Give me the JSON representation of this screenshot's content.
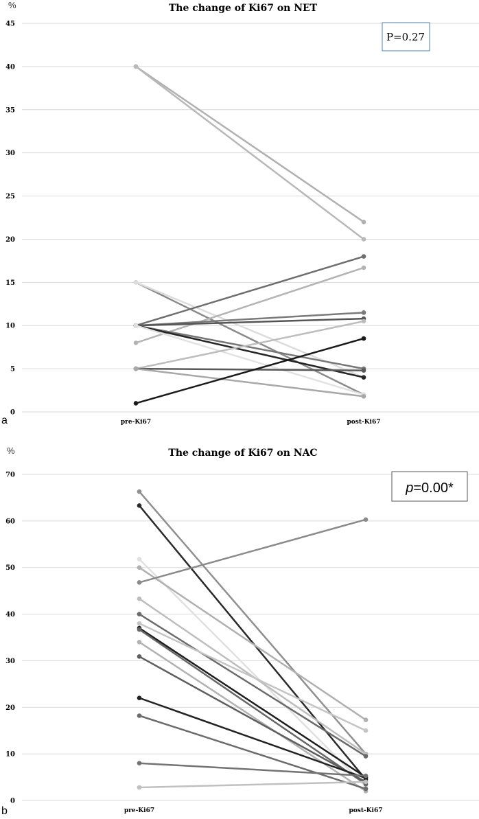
{
  "chart_data": [
    {
      "type": "line",
      "panel_label": "a",
      "title": "The change of Ki67 on NET",
      "unit_label": "%",
      "categories": [
        "pre-Ki67",
        "post-Ki67"
      ],
      "yticks": [
        "0",
        "5",
        "10",
        "15",
        "20",
        "25",
        "30",
        "35",
        "40",
        "45"
      ],
      "ylim": [
        0,
        45
      ],
      "grid": true,
      "annotation": "P=0.27",
      "series": [
        {
          "values": [
            40,
            22
          ],
          "color": "#b0b0b0"
        },
        {
          "values": [
            40,
            20
          ],
          "color": "#b8b8b8"
        },
        {
          "values": [
            15,
            2
          ],
          "color": "#8a8a8a"
        },
        {
          "values": [
            15,
            4
          ],
          "color": "#dcdcdc"
        },
        {
          "values": [
            10,
            18
          ],
          "color": "#6e6e6e"
        },
        {
          "values": [
            8,
            16.7
          ],
          "color": "#b4b4b4"
        },
        {
          "values": [
            10,
            11.5
          ],
          "color": "#7a7a7a"
        },
        {
          "values": [
            10,
            10.8
          ],
          "color": "#555555"
        },
        {
          "values": [
            10,
            5
          ],
          "color": "#777777"
        },
        {
          "values": [
            10,
            4
          ],
          "color": "#262626"
        },
        {
          "values": [
            10,
            2
          ],
          "color": "#e2e2e2"
        },
        {
          "values": [
            5,
            10.5
          ],
          "color": "#bdbdbd"
        },
        {
          "values": [
            5,
            4.8
          ],
          "color": "#595959"
        },
        {
          "values": [
            5,
            1.8
          ],
          "color": "#a8a8a8"
        },
        {
          "values": [
            1,
            8.5
          ],
          "color": "#1a1a1a"
        }
      ]
    },
    {
      "type": "line",
      "panel_label": "b",
      "title": "The change of Ki67 on NAC",
      "unit_label": "%",
      "categories": [
        "pre-Ki67",
        "post-Ki67"
      ],
      "yticks": [
        "0",
        "10",
        "20",
        "30",
        "40",
        "50",
        "60",
        "70"
      ],
      "ylim": [
        0,
        70
      ],
      "grid": true,
      "annotation": "p=0.00*",
      "series": [
        {
          "values": [
            66.3,
            10
          ],
          "color": "#8f8f8f"
        },
        {
          "values": [
            63.3,
            4.5
          ],
          "color": "#2a2a2a"
        },
        {
          "values": [
            51.8,
            3
          ],
          "color": "#e0e0e0"
        },
        {
          "values": [
            50,
            17.3
          ],
          "color": "#b0b0b0"
        },
        {
          "values": [
            46.8,
            60.3
          ],
          "color": "#8a8a8a"
        },
        {
          "values": [
            43.3,
            10
          ],
          "color": "#bdbdbd"
        },
        {
          "values": [
            40,
            9.5
          ],
          "color": "#6a6a6a"
        },
        {
          "values": [
            38,
            15
          ],
          "color": "#c4c4c4"
        },
        {
          "values": [
            37,
            5
          ],
          "color": "#1e1e1e"
        },
        {
          "values": [
            36.7,
            3.5
          ],
          "color": "#666666"
        },
        {
          "values": [
            34,
            2
          ],
          "color": "#b2b2b2"
        },
        {
          "values": [
            30.9,
            4
          ],
          "color": "#5e5e5e"
        },
        {
          "values": [
            22,
            4.8
          ],
          "color": "#222222"
        },
        {
          "values": [
            18.2,
            2.5
          ],
          "color": "#6c6c6c"
        },
        {
          "values": [
            8,
            5.3
          ],
          "color": "#737373"
        },
        {
          "values": [
            2.8,
            4
          ],
          "color": "#c0c0c0"
        }
      ]
    }
  ]
}
